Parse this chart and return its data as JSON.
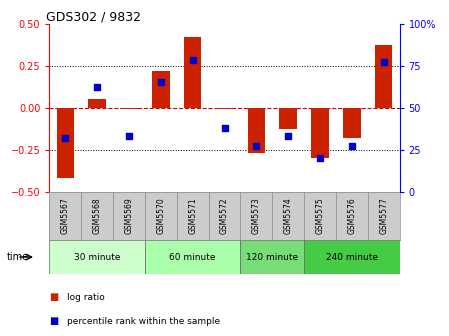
{
  "title": "GDS302 / 9832",
  "samples": [
    "GSM5567",
    "GSM5568",
    "GSM5569",
    "GSM5570",
    "GSM5571",
    "GSM5572",
    "GSM5573",
    "GSM5574",
    "GSM5575",
    "GSM5576",
    "GSM5577"
  ],
  "log_ratios": [
    -0.42,
    0.05,
    -0.01,
    0.22,
    0.42,
    -0.01,
    -0.27,
    -0.13,
    -0.3,
    -0.18,
    0.37
  ],
  "percentile_ranks": [
    32,
    62,
    33,
    65,
    78,
    38,
    27,
    33,
    20,
    27,
    77
  ],
  "groups": [
    {
      "label": "30 minute",
      "start": 0,
      "end": 3,
      "color": "#ccffcc"
    },
    {
      "label": "60 minute",
      "start": 3,
      "end": 6,
      "color": "#aaffaa"
    },
    {
      "label": "120 minute",
      "start": 6,
      "end": 8,
      "color": "#77dd77"
    },
    {
      "label": "240 minute",
      "start": 8,
      "end": 11,
      "color": "#44cc44"
    }
  ],
  "bar_color": "#cc2200",
  "dot_color": "#0000cc",
  "ylim_left": [
    -0.5,
    0.5
  ],
  "ylim_right": [
    0,
    100
  ],
  "yticks_left": [
    -0.5,
    -0.25,
    0,
    0.25,
    0.5
  ],
  "yticks_right": [
    0,
    25,
    50,
    75,
    100
  ],
  "hline_color": "#cc0000",
  "grid_color": "#000000",
  "background_plot": "#ffffff",
  "background_label": "#cccccc",
  "bar_width": 0.55,
  "time_label": "time",
  "legend_log_ratio": "log ratio",
  "legend_percentile": "percentile rank within the sample",
  "fig_width": 4.49,
  "fig_height": 3.36,
  "dpi": 100
}
